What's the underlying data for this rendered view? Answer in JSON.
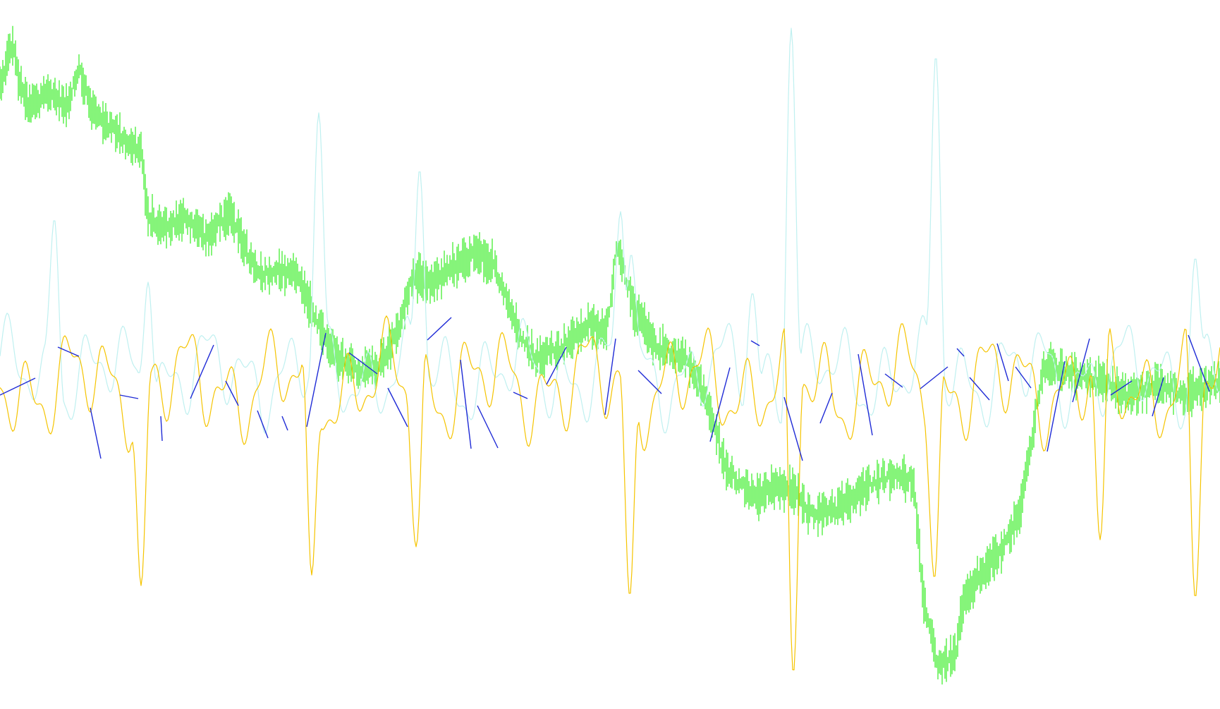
{
  "chart_data": {
    "type": "line",
    "title": "",
    "xlabel": "",
    "ylabel": "",
    "grid": false,
    "legend": "none",
    "x_count": 400,
    "ylim": [
      0,
      1005
    ],
    "series": [
      {
        "key": "green_price",
        "color": "#44ee33",
        "style": "bars",
        "anchors": [
          [
            0,
            120
          ],
          [
            10,
            85
          ],
          [
            18,
            60
          ],
          [
            28,
            120
          ],
          [
            40,
            150
          ],
          [
            55,
            145
          ],
          [
            70,
            130
          ],
          [
            95,
            150
          ],
          [
            112,
            95
          ],
          [
            130,
            155
          ],
          [
            155,
            180
          ],
          [
            175,
            195
          ],
          [
            195,
            215
          ],
          [
            200,
            210
          ],
          [
            210,
            310
          ],
          [
            235,
            320
          ],
          [
            260,
            310
          ],
          [
            295,
            335
          ],
          [
            325,
            300
          ],
          [
            365,
            390
          ],
          [
            420,
            385
          ],
          [
            455,
            470
          ],
          [
            480,
            510
          ],
          [
            505,
            525
          ],
          [
            535,
            520
          ],
          [
            565,
            470
          ],
          [
            585,
            390
          ],
          [
            610,
            400
          ],
          [
            640,
            380
          ],
          [
            675,
            360
          ],
          [
            700,
            375
          ],
          [
            735,
            470
          ],
          [
            760,
            510
          ],
          [
            795,
            495
          ],
          [
            835,
            460
          ],
          [
            860,
            470
          ],
          [
            875,
            350
          ],
          [
            900,
            440
          ],
          [
            930,
            490
          ],
          [
            975,
            510
          ],
          [
            1000,
            560
          ],
          [
            1030,
            665
          ],
          [
            1070,
            705
          ],
          [
            1100,
            690
          ],
          [
            1125,
            695
          ],
          [
            1150,
            730
          ],
          [
            1190,
            720
          ],
          [
            1230,
            690
          ],
          [
            1260,
            675
          ],
          [
            1295,
            680
          ],
          [
            1310,
            850
          ],
          [
            1330,
            945
          ],
          [
            1355,
            930
          ],
          [
            1365,
            860
          ],
          [
            1385,
            820
          ],
          [
            1420,
            780
          ],
          [
            1445,
            730
          ],
          [
            1470,
            580
          ],
          [
            1480,
            520
          ],
          [
            1520,
            530
          ],
          [
            1560,
            540
          ],
          [
            1600,
            560
          ],
          [
            1640,
            545
          ],
          [
            1680,
            560
          ],
          [
            1730,
            540
          ]
        ],
        "noise": 24
      },
      {
        "key": "cyan_oscillator",
        "color": "#bff0f0",
        "style": "wave",
        "baseline": 530,
        "amplitude": 75,
        "spikes": [
          [
            77,
            310
          ],
          [
            210,
            400
          ],
          [
            452,
            160
          ],
          [
            595,
            240
          ],
          [
            880,
            300
          ],
          [
            895,
            360
          ],
          [
            1067,
            415
          ],
          [
            1122,
            40
          ],
          [
            1327,
            78
          ],
          [
            1695,
            365
          ]
        ]
      },
      {
        "key": "yellow_oscillator",
        "color": "#f5c400",
        "style": "wave",
        "baseline": 545,
        "amplitude": 85,
        "spikes": [
          [
            200,
            830
          ],
          [
            442,
            815
          ],
          [
            590,
            775
          ],
          [
            893,
            845
          ],
          [
            1125,
            955
          ],
          [
            1325,
            820
          ],
          [
            1560,
            765
          ],
          [
            1695,
            848
          ]
        ]
      },
      {
        "key": "blue_segments",
        "color": "#1f2bd6",
        "style": "segments",
        "points": [
          [
            0,
            560
          ],
          [
            50,
            536
          ],
          [
            82,
            492
          ],
          [
            112,
            505
          ],
          [
            128,
            578
          ],
          [
            143,
            650
          ],
          [
            170,
            560
          ],
          [
            196,
            565
          ],
          [
            228,
            590
          ],
          [
            230,
            625
          ],
          [
            270,
            565
          ],
          [
            303,
            489
          ],
          [
            320,
            540
          ],
          [
            338,
            575
          ],
          [
            365,
            582
          ],
          [
            380,
            621
          ],
          [
            400,
            590
          ],
          [
            408,
            610
          ],
          [
            435,
            605
          ],
          [
            462,
            472
          ],
          [
            495,
            500
          ],
          [
            535,
            530
          ],
          [
            550,
            550
          ],
          [
            578,
            605
          ],
          [
            606,
            482
          ],
          [
            640,
            450
          ],
          [
            653,
            510
          ],
          [
            668,
            636
          ],
          [
            677,
            575
          ],
          [
            706,
            635
          ],
          [
            728,
            556
          ],
          [
            748,
            565
          ],
          [
            775,
            545
          ],
          [
            803,
            492
          ],
          [
            858,
            588
          ],
          [
            873,
            480
          ],
          [
            905,
            525
          ],
          [
            938,
            558
          ],
          [
            1007,
            626
          ],
          [
            1035,
            521
          ],
          [
            1065,
            483
          ],
          [
            1077,
            490
          ],
          [
            1112,
            563
          ],
          [
            1138,
            653
          ],
          [
            1163,
            600
          ],
          [
            1180,
            557
          ],
          [
            1217,
            502
          ],
          [
            1237,
            617
          ],
          [
            1255,
            530
          ],
          [
            1280,
            549
          ],
          [
            1305,
            551
          ],
          [
            1344,
            520
          ],
          [
            1357,
            494
          ],
          [
            1367,
            505
          ],
          [
            1375,
            535
          ],
          [
            1403,
            567
          ],
          [
            1414,
            487
          ],
          [
            1430,
            540
          ],
          [
            1440,
            520
          ],
          [
            1462,
            550
          ],
          [
            1485,
            640
          ],
          [
            1510,
            512
          ],
          [
            1521,
            570
          ],
          [
            1545,
            480
          ],
          [
            1575,
            560
          ],
          [
            1605,
            540
          ],
          [
            1634,
            590
          ],
          [
            1650,
            535
          ],
          [
            1685,
            475
          ],
          [
            1715,
            555
          ],
          [
            1730,
            590
          ]
        ]
      }
    ]
  }
}
